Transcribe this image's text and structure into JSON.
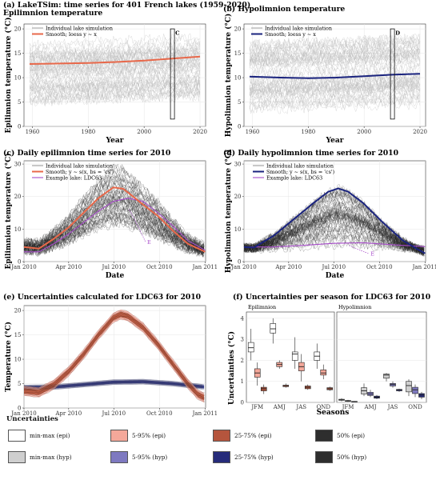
{
  "chart_data": [
    {
      "id": "a",
      "type": "line",
      "title": "(a) LakeTSim: time series for 401 French lakes (1959-2020)",
      "subtitle": "Epilimnion temperature",
      "xlabel": "Year",
      "ylabel": "Epilimnion temperature (°C)",
      "xlim": [
        1957,
        2022
      ],
      "ylim": [
        0,
        21
      ],
      "xticks": [
        "1960",
        "1980",
        "2000",
        "2020"
      ],
      "yticks": [
        "0",
        "5",
        "10",
        "15",
        "20"
      ],
      "legend": [
        "Individual lake simulation",
        "Smooth; loess y ~ x"
      ],
      "annotation": "C",
      "highlight_range": [
        2010,
        2011
      ],
      "smooth": {
        "x": [
          1959,
          1970,
          1980,
          1990,
          2000,
          2010,
          2020
        ],
        "y": [
          12.8,
          12.9,
          13.0,
          13.2,
          13.5,
          13.9,
          14.3
        ]
      },
      "colors": {
        "smooth": "#e8684a",
        "lines": "#bdbdbd"
      }
    },
    {
      "id": "b",
      "type": "line",
      "title": "(b) Hypolimnion temperature",
      "xlabel": "Year",
      "ylabel": "Hypolimnion temperature (°C)",
      "xlim": [
        1957,
        2022
      ],
      "ylim": [
        0,
        21
      ],
      "xticks": [
        "1960",
        "1980",
        "2000",
        "2020"
      ],
      "yticks": [
        "0",
        "5",
        "10",
        "15",
        "20"
      ],
      "legend": [
        "Individual lake simulation",
        "Smooth; loess y ~ x"
      ],
      "annotation": "D",
      "highlight_range": [
        2010,
        2011
      ],
      "smooth": {
        "x": [
          1959,
          1970,
          1980,
          1990,
          2000,
          2010,
          2020
        ],
        "y": [
          10.2,
          10.0,
          9.9,
          10.0,
          10.3,
          10.6,
          10.8
        ]
      },
      "colors": {
        "smooth": "#1a237e",
        "lines": "#bdbdbd"
      }
    },
    {
      "id": "c",
      "type": "line",
      "title": "(c) Daily epilimnion time series for 2010",
      "xlabel": "Date",
      "ylabel": "Epilimnion temperature (°C)",
      "xlim": [
        0,
        366
      ],
      "ylim": [
        0,
        31
      ],
      "xticks": [
        "Jan 2010",
        "Apr 2010",
        "Jul 2010",
        "Oct 2010",
        "Jan 2011"
      ],
      "yticks": [
        "0",
        "10",
        "20",
        "30"
      ],
      "legend": [
        "Individual lake simulation",
        "Smooth; y ~ s(x, bs = 'cs')",
        "Example lake: LDC63"
      ],
      "annotation": "E",
      "smooth": {
        "x": [
          0,
          30,
          60,
          90,
          120,
          150,
          180,
          200,
          220,
          240,
          270,
          300,
          330,
          365
        ],
        "y": [
          4.5,
          4.0,
          7.0,
          10.5,
          15.0,
          19.5,
          22.8,
          22.4,
          20.0,
          17.5,
          14.0,
          9.5,
          5.5,
          3.0
        ]
      },
      "example_lake": {
        "x": [
          0,
          30,
          60,
          90,
          120,
          150,
          180,
          210,
          240,
          270,
          300,
          330,
          365
        ],
        "y": [
          3.0,
          3.0,
          5.5,
          8.5,
          12.0,
          15.5,
          18.5,
          19.5,
          18.5,
          15.0,
          11.0,
          6.5,
          3.5
        ]
      },
      "colors": {
        "smooth": "#e8684a",
        "example": "#a64ac9",
        "lines": "#222222"
      }
    },
    {
      "id": "d",
      "type": "line",
      "title": "(d) Daily hypolimnion time series for 2010",
      "xlabel": "Date",
      "ylabel": "Hypolimnion temperature (°C)",
      "xlim": [
        0,
        366
      ],
      "ylim": [
        0,
        31
      ],
      "xticks": [
        "Jan 2010",
        "Apr 2010",
        "Jul 2010",
        "Oct 2010",
        "Jan 2011"
      ],
      "yticks": [
        "0",
        "10",
        "20",
        "30"
      ],
      "legend": [
        "Individual lake simulation",
        "Smooth; y ~ s(x, bs = 'cs')",
        "Example lake: LDC63"
      ],
      "annotation": "E",
      "smooth": {
        "x": [
          0,
          20,
          60,
          100,
          140,
          170,
          190,
          210,
          240,
          280,
          320,
          350,
          365
        ],
        "y": [
          4.5,
          4.3,
          8.0,
          13.0,
          18.0,
          21.5,
          22.5,
          21.5,
          18.0,
          12.0,
          6.5,
          3.8,
          2.5
        ]
      },
      "example_lake": {
        "x": [
          0,
          60,
          120,
          180,
          240,
          300,
          365
        ],
        "y": [
          4.5,
          4.5,
          5.0,
          5.6,
          5.8,
          5.2,
          4.6
        ]
      },
      "colors": {
        "smooth": "#1a237e",
        "example": "#a64ac9",
        "lines": "#222222"
      }
    },
    {
      "id": "e",
      "type": "area",
      "title": "(e) Uncertainties calculated for LDC63 for 2010",
      "xlabel": "",
      "ylabel": "Temperature (°C)",
      "xlim": [
        0,
        366
      ],
      "ylim": [
        0,
        21
      ],
      "xticks": [
        "Jan 2010",
        "Apr 2010",
        "Jul 2010",
        "Oct 2010",
        "Jan 2011"
      ],
      "yticks": [
        "0",
        "5",
        "10",
        "15",
        "20"
      ],
      "epi_median": {
        "x": [
          0,
          30,
          60,
          90,
          120,
          150,
          180,
          195,
          210,
          240,
          270,
          300,
          330,
          350,
          365
        ],
        "y": [
          3.5,
          3.2,
          4.8,
          7.5,
          11.0,
          15.0,
          18.5,
          19.2,
          18.8,
          16.5,
          13.0,
          9.0,
          5.0,
          2.8,
          2.0
        ]
      },
      "hyp_median": {
        "x": [
          0,
          60,
          120,
          180,
          240,
          300,
          365
        ],
        "y": [
          4.2,
          4.3,
          4.8,
          5.3,
          5.4,
          5.0,
          4.3
        ]
      },
      "colors": {
        "epi": "#b5553d",
        "hyp": "#262b7a"
      }
    },
    {
      "id": "f",
      "type": "box",
      "title": "(f) Uncertainties per season for LDC63 for 2010",
      "xlabel": "Seasons",
      "ylabel": "Uncertainties (°C)",
      "ylim": [
        0,
        4.3
      ],
      "yticks": [
        "0",
        "1",
        "2",
        "3",
        "4"
      ],
      "categories": [
        "JFM",
        "AMJ",
        "JAS",
        "OND"
      ],
      "facets": [
        "Epilimnion",
        "Hypolimnion"
      ],
      "series": [
        {
          "name": "min-max (epi)",
          "facet": "Epilimnion",
          "boxes": [
            [
              2.0,
              2.4,
              2.6,
              2.85,
              3.5
            ],
            [
              2.8,
              3.3,
              3.5,
              3.75,
              4.0
            ],
            [
              1.6,
              2.0,
              2.3,
              2.4,
              3.1
            ],
            [
              1.6,
              2.0,
              2.2,
              2.4,
              2.8
            ]
          ]
        },
        {
          "name": "5-95% (epi)",
          "facet": "Epilimnion",
          "boxes": [
            [
              0.8,
              1.2,
              1.4,
              1.6,
              1.9
            ],
            [
              1.6,
              1.7,
              1.8,
              1.9,
              2.0
            ],
            [
              1.0,
              1.5,
              1.7,
              1.9,
              2.3
            ],
            [
              1.1,
              1.3,
              1.4,
              1.55,
              1.8
            ]
          ]
        },
        {
          "name": "25-75% (epi)",
          "facet": "Epilimnion",
          "boxes": [
            [
              0.4,
              0.55,
              0.65,
              0.72,
              0.85
            ],
            [
              0.7,
              0.75,
              0.8,
              0.82,
              0.9
            ],
            [
              0.6,
              0.65,
              0.72,
              0.78,
              0.85
            ],
            [
              0.55,
              0.6,
              0.65,
              0.7,
              0.75
            ]
          ]
        },
        {
          "name": "min-max (hyp)",
          "facet": "Hypolimnion",
          "boxes": [
            [
              0.05,
              0.1,
              0.12,
              0.15,
              0.2
            ],
            [
              0.3,
              0.4,
              0.55,
              0.7,
              0.9
            ],
            [
              1.0,
              1.15,
              1.3,
              1.35,
              1.4
            ],
            [
              0.3,
              0.5,
              0.8,
              1.0,
              1.1
            ]
          ]
        },
        {
          "name": "5-95% (hyp)",
          "facet": "Hypolimnion",
          "boxes": [
            [
              0.03,
              0.05,
              0.07,
              0.09,
              0.12
            ],
            [
              0.25,
              0.33,
              0.4,
              0.48,
              0.6
            ],
            [
              0.7,
              0.78,
              0.85,
              0.9,
              1.0
            ],
            [
              0.25,
              0.42,
              0.6,
              0.72,
              0.85
            ]
          ]
        },
        {
          "name": "25-75% (hyp)",
          "facet": "Hypolimnion",
          "boxes": [
            [
              0.02,
              0.03,
              0.04,
              0.05,
              0.06
            ],
            [
              0.15,
              0.2,
              0.25,
              0.3,
              0.35
            ],
            [
              0.5,
              0.55,
              0.6,
              0.62,
              0.65
            ],
            [
              0.15,
              0.25,
              0.35,
              0.42,
              0.5
            ]
          ]
        }
      ],
      "colors": {
        "min-max (epi)": "#ffffff",
        "5-95% (epi)": "#f4a89a",
        "25-75% (epi)": "#b5553d",
        "50% (epi)": "#2e2e2e",
        "min-max (hyp)": "#cfcfcf",
        "5-95% (hyp)": "#7e79c0",
        "25-75% (hyp)": "#262b7a",
        "50% (hyp)": "#2e2e2e"
      }
    }
  ],
  "legend": {
    "title": "Uncertainties",
    "items": [
      {
        "label": "min-max (epi)",
        "color": "#ffffff"
      },
      {
        "label": "5-95% (epi)",
        "color": "#f4a89a"
      },
      {
        "label": "25-75% (epi)",
        "color": "#b5553d"
      },
      {
        "label": "50% (epi)",
        "color": "#2e2e2e"
      },
      {
        "label": "min-max (hyp)",
        "color": "#cfcfcf"
      },
      {
        "label": "5-95% (hyp)",
        "color": "#7e79c0"
      },
      {
        "label": "25-75% (hyp)",
        "color": "#262b7a"
      },
      {
        "label": "50% (hyp)",
        "color": "#2e2e2e"
      }
    ]
  }
}
